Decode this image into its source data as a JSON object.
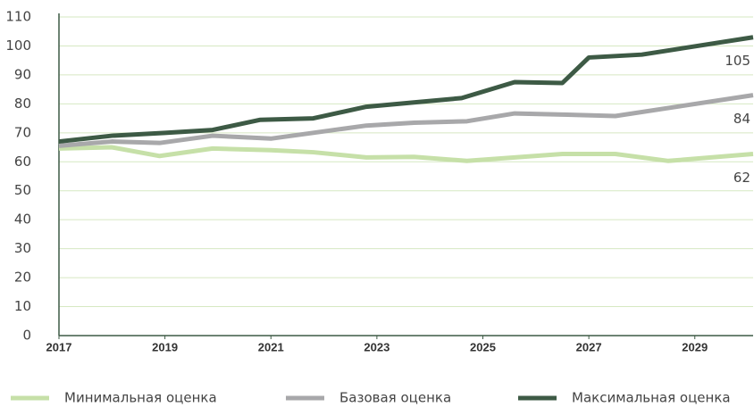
{
  "chart_data": {
    "type": "line",
    "xlim": [
      2017,
      2030.1
    ],
    "xticks": [
      2017,
      2019,
      2021,
      2023,
      2025,
      2027,
      2029
    ],
    "ylim": [
      0,
      110
    ],
    "yticks": [
      0,
      10,
      20,
      30,
      40,
      50,
      60,
      70,
      80,
      90,
      100,
      110
    ],
    "grid": true,
    "legend": "bottom",
    "series": [
      {
        "name": "Минимальная оценка",
        "color": "#c6e0a8",
        "x": [
          2017,
          2018,
          2018.9,
          2019.9,
          2021,
          2021.8,
          2022.8,
          2023.7,
          2024.7,
          2025.6,
          2026.5,
          2027.5,
          2028.5,
          2030.1
        ],
        "values": [
          64.6,
          65,
          62,
          64.6,
          64,
          63.3,
          61.5,
          61.7,
          60.3,
          61.5,
          62.7,
          62.7,
          60.3,
          62.7
        ]
      },
      {
        "name": "Базовая оценка",
        "color": "#a8a8aa",
        "x": [
          2017,
          2018,
          2018.9,
          2019.9,
          2021,
          2021.8,
          2022.8,
          2023.7,
          2024.7,
          2025.6,
          2026.5,
          2027.5,
          2030.1
        ],
        "values": [
          65.5,
          67,
          66.5,
          69,
          68,
          70,
          72.5,
          73.5,
          74,
          76.7,
          76.3,
          75.8,
          83
        ]
      },
      {
        "name": "Максимальная оценка",
        "color": "#3d5a45",
        "x": [
          2017,
          2018,
          2019,
          2019.9,
          2020.8,
          2021.8,
          2022.8,
          2023.7,
          2024.6,
          2025.6,
          2026.5,
          2027,
          2028,
          2030.1
        ],
        "values": [
          67,
          69,
          70,
          71,
          74.5,
          75,
          79,
          80.5,
          82,
          87.5,
          87.2,
          96,
          97,
          103
        ]
      }
    ],
    "annotations": [
      "62",
      "84",
      "105"
    ]
  }
}
